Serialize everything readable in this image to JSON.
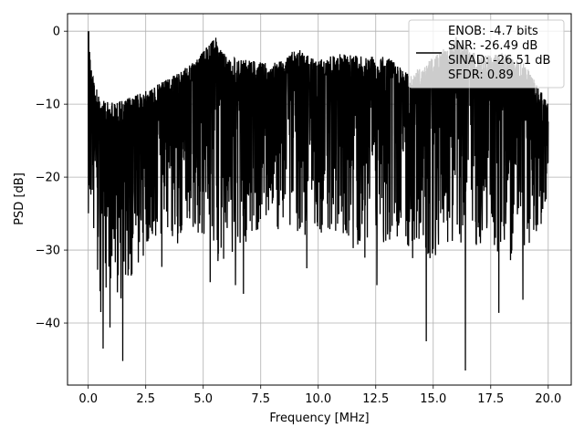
{
  "chart_data": {
    "type": "line",
    "title": "",
    "xlabel": "Frequency [MHz]",
    "ylabel": "PSD [dB]",
    "xlim": [
      -0.9,
      21.0
    ],
    "ylim": [
      -48.5,
      2.4
    ],
    "x_ticks": [
      0.0,
      2.5,
      5.0,
      7.5,
      10.0,
      12.5,
      15.0,
      17.5,
      20.0
    ],
    "x_tick_labels": [
      "0.0",
      "2.5",
      "5.0",
      "7.5",
      "10.0",
      "12.5",
      "15.0",
      "17.5",
      "20.0"
    ],
    "y_ticks": [
      0,
      -10,
      -20,
      -30,
      -40
    ],
    "y_tick_labels": [
      "0",
      "−10",
      "−20",
      "−30",
      "−40"
    ],
    "grid": true,
    "legend_position": "top-right",
    "line_color": "#000000",
    "legend": {
      "lines": [
        "ENOB: -4.7 bits",
        "SNR: -26.49 dB",
        "SINAD: -26.51 dB",
        "SFDR: 0.89"
      ]
    },
    "series": [
      {
        "color": "#000000",
        "x_range": [
          0.0,
          20.0
        ],
        "upper_envelope": [
          [
            0.0,
            0.0
          ],
          [
            0.1,
            -3.8
          ],
          [
            0.3,
            -7.5
          ],
          [
            0.6,
            -9.5
          ],
          [
            1.2,
            -9.8
          ],
          [
            2.5,
            -8.2
          ],
          [
            3.5,
            -6.5
          ],
          [
            4.5,
            -4.5
          ],
          [
            5.5,
            -1.0
          ],
          [
            6.0,
            -3.5
          ],
          [
            7.0,
            -4.0
          ],
          [
            8.0,
            -4.5
          ],
          [
            9.0,
            -2.5
          ],
          [
            10.0,
            -4.0
          ],
          [
            11.0,
            -3.0
          ],
          [
            12.0,
            -3.5
          ],
          [
            13.0,
            -3.5
          ],
          [
            14.0,
            -6.0
          ],
          [
            15.0,
            -3.5
          ],
          [
            16.0,
            -1.0
          ],
          [
            17.0,
            -3.5
          ],
          [
            18.0,
            -3.0
          ],
          [
            19.0,
            -4.5
          ],
          [
            20.0,
            -10.0
          ]
        ],
        "lower_envelope": [
          [
            0.0,
            -25.0
          ],
          [
            0.3,
            -30.0
          ],
          [
            0.6,
            -38.0
          ],
          [
            1.0,
            -34.0
          ],
          [
            1.5,
            -38.0
          ],
          [
            2.5,
            -30.0
          ],
          [
            3.5,
            -30.0
          ],
          [
            4.5,
            -28.0
          ],
          [
            5.5,
            -32.0
          ],
          [
            6.5,
            -30.0
          ],
          [
            7.5,
            -28.0
          ],
          [
            8.5,
            -27.0
          ],
          [
            9.5,
            -28.0
          ],
          [
            10.5,
            -28.0
          ],
          [
            11.5,
            -30.0
          ],
          [
            12.5,
            -32.0
          ],
          [
            13.5,
            -30.0
          ],
          [
            14.5,
            -32.0
          ],
          [
            15.5,
            -30.0
          ],
          [
            16.5,
            -30.0
          ],
          [
            17.5,
            -29.0
          ],
          [
            18.5,
            -33.0
          ],
          [
            19.5,
            -28.0
          ],
          [
            20.0,
            -24.0
          ]
        ],
        "notable_dips": [
          [
            0.55,
            -38.5
          ],
          [
            0.65,
            -43.5
          ],
          [
            0.95,
            -40.6
          ],
          [
            1.5,
            -45.2
          ],
          [
            3.2,
            -32.3
          ],
          [
            5.3,
            -34.4
          ],
          [
            6.4,
            -34.8
          ],
          [
            6.75,
            -36.0
          ],
          [
            9.5,
            -32.5
          ],
          [
            12.55,
            -34.8
          ],
          [
            14.7,
            -42.5
          ],
          [
            16.4,
            -46.5
          ],
          [
            17.85,
            -38.6
          ],
          [
            18.9,
            -36.8
          ]
        ],
        "notable_peaks": [
          [
            0.02,
            0.0
          ],
          [
            5.55,
            -0.9
          ],
          [
            16.0,
            -0.8
          ],
          [
            9.2,
            -2.6
          ]
        ]
      }
    ]
  }
}
